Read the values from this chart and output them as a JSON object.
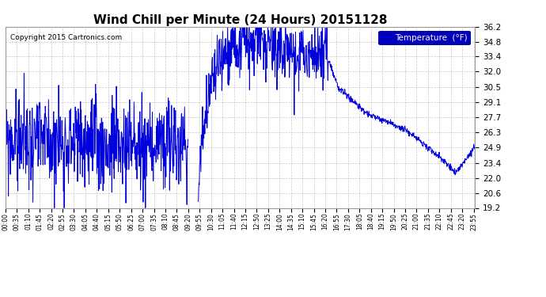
{
  "title": "Wind Chill per Minute (24 Hours) 20151128",
  "copyright": "Copyright 2015 Cartronics.com",
  "legend_label": "Temperature  (°F)",
  "line_color": "#0000dd",
  "background_color": "#ffffff",
  "plot_bg_color": "#ffffff",
  "grid_color": "#bbbbbb",
  "ylim": [
    19.2,
    36.2
  ],
  "yticks": [
    19.2,
    20.6,
    22.0,
    23.4,
    24.9,
    26.3,
    27.7,
    29.1,
    30.5,
    32.0,
    33.4,
    34.8,
    36.2
  ],
  "legend_bg": "#0000bb",
  "legend_text_color": "#ffffff",
  "title_color": "#000000",
  "copyright_color": "#000000",
  "tick_interval_minutes": 35
}
